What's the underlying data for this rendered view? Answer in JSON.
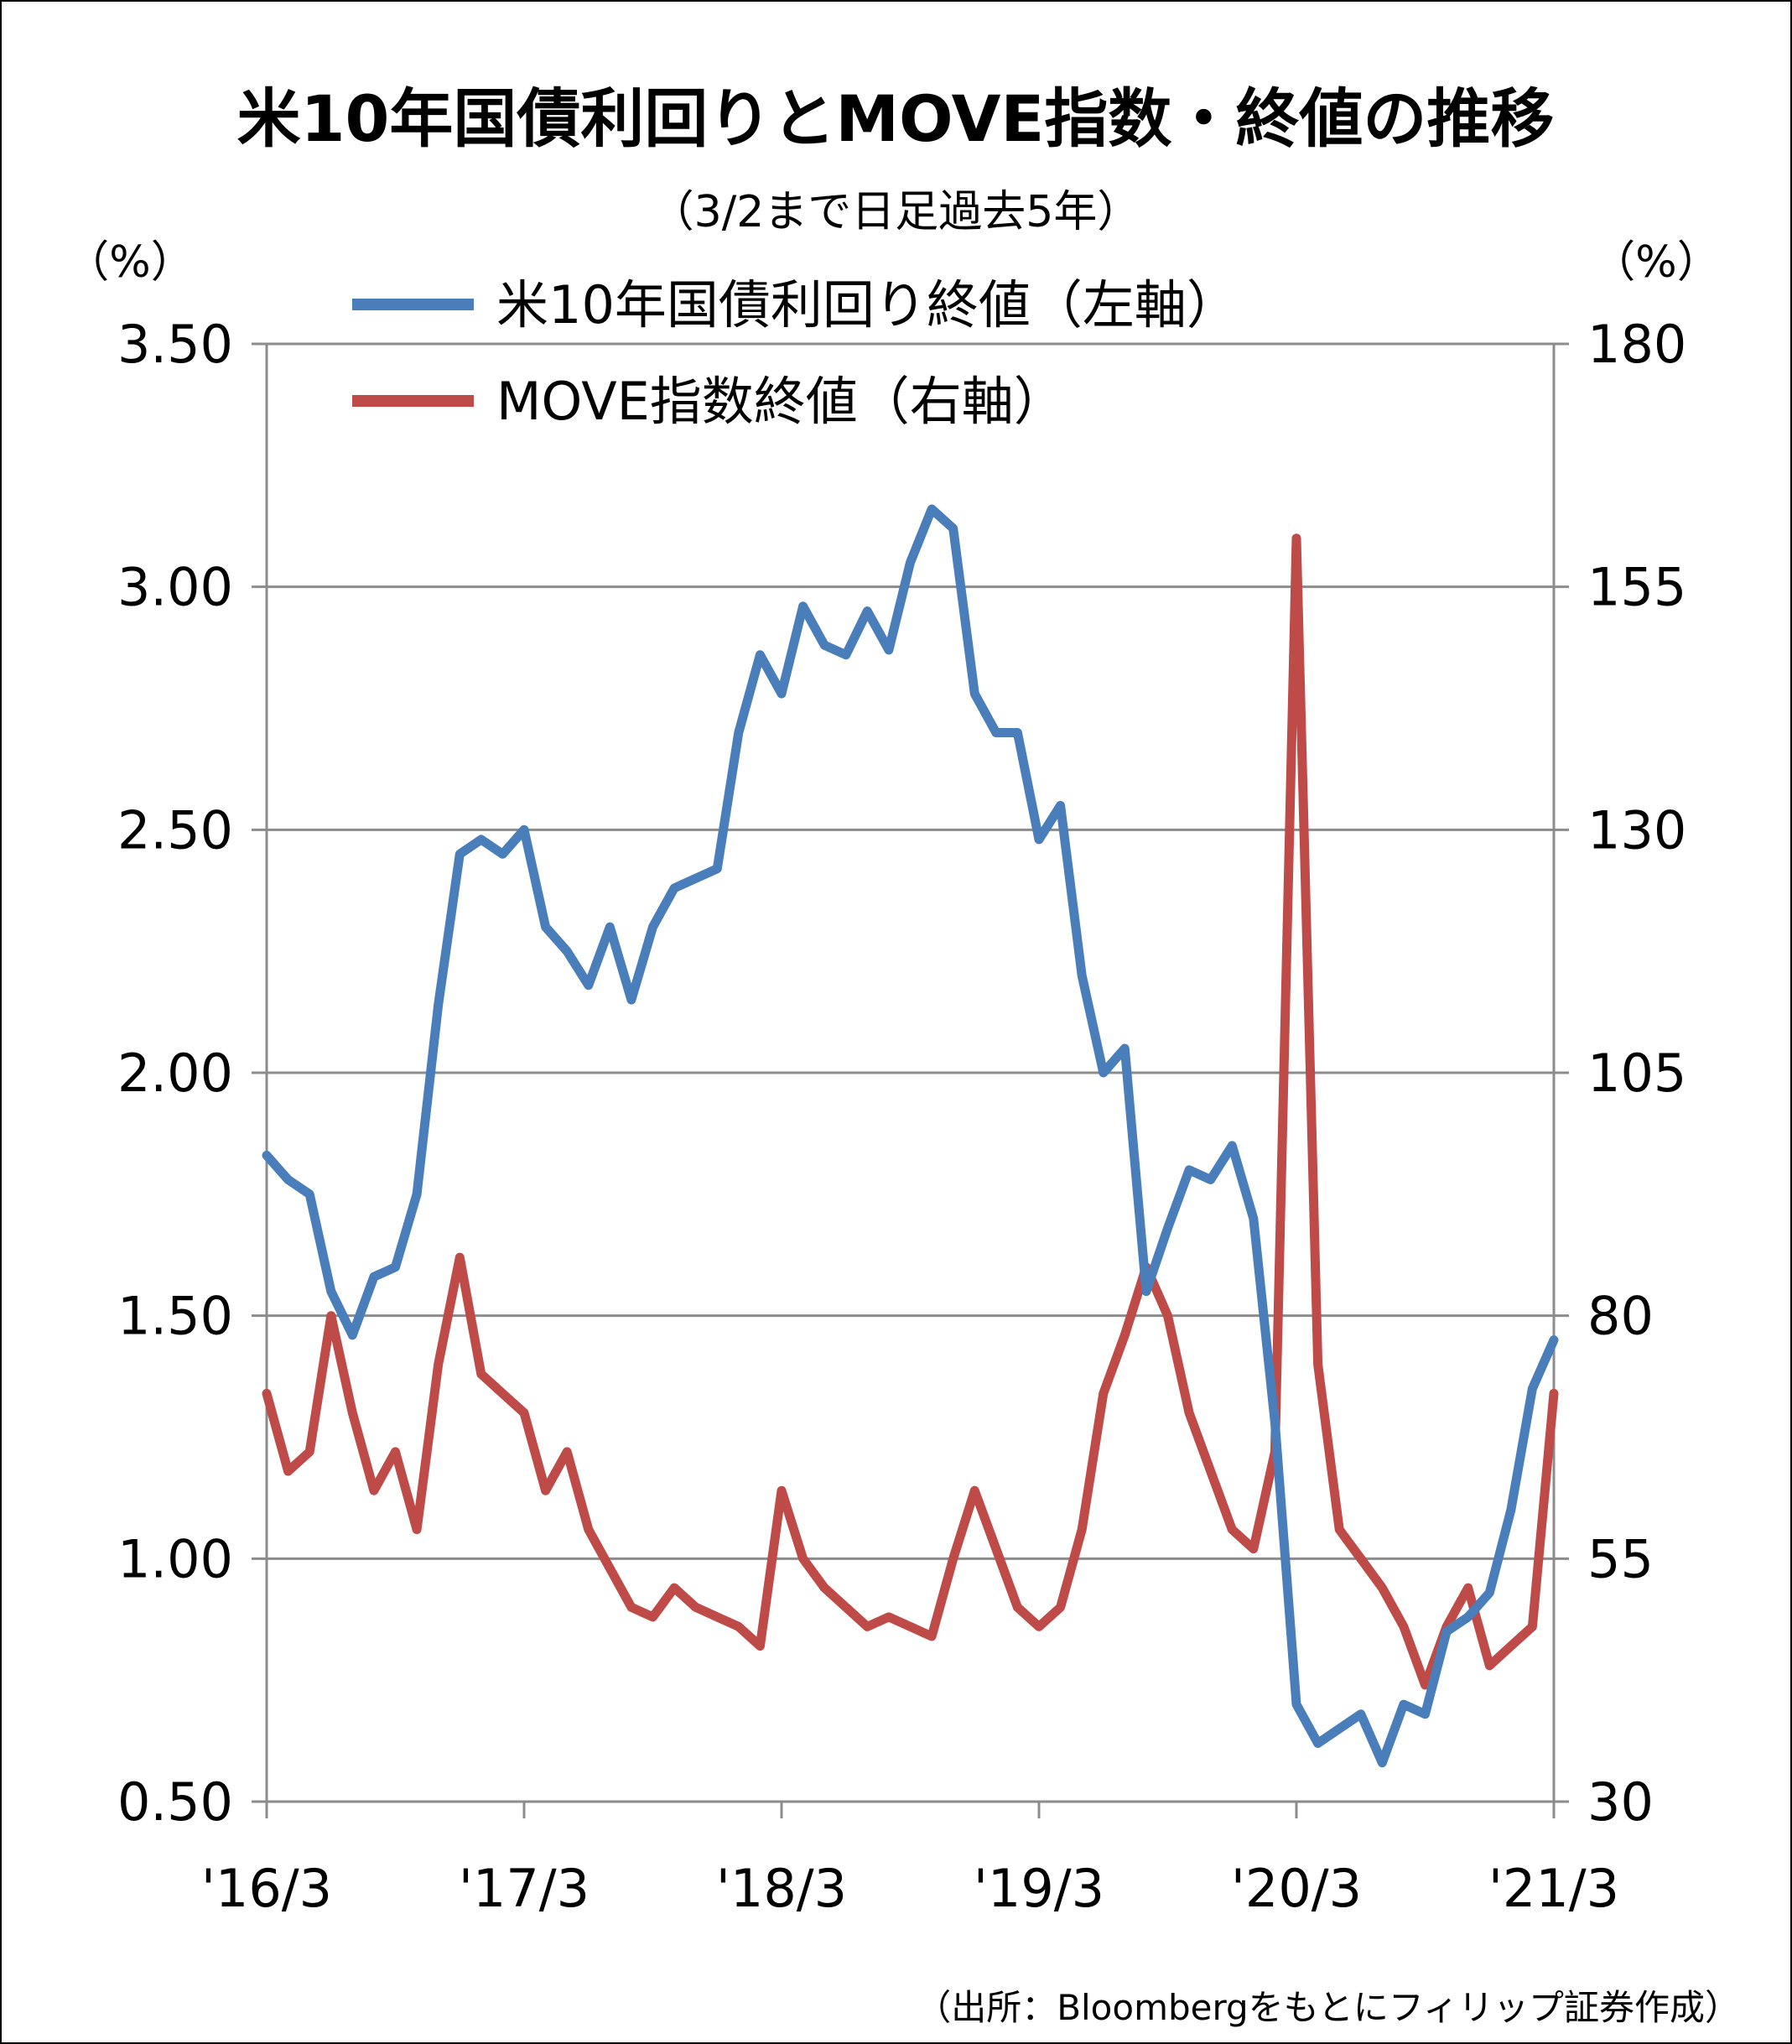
{
  "title": "米10年国債利回りとMOVE指数・終値の推移",
  "subtitle": "（3/2まで日足過去5年）",
  "source": "（出所：Bloombergをもとにフィリップ証券作成）",
  "chart_data": {
    "type": "line",
    "left_unit": "（%）",
    "right_unit": "（%）",
    "y_left": {
      "min": 0.5,
      "max": 3.5,
      "ticks": [
        "0.50",
        "1.00",
        "1.50",
        "2.00",
        "2.50",
        "3.00",
        "3.50"
      ]
    },
    "y_right": {
      "min": 30,
      "max": 180,
      "ticks": [
        "30",
        "55",
        "80",
        "105",
        "130",
        "155",
        "180"
      ]
    },
    "x_ticks": [
      "'16/3",
      "'17/3",
      "'18/3",
      "'19/3",
      "'20/3",
      "'21/3"
    ],
    "x_range": [
      "2016-03",
      "2021-03"
    ],
    "grid": "horizontal",
    "legend_placement": "top-center",
    "series": [
      {
        "name": "米10年国債利回り終値（左軸）",
        "axis": "left",
        "color": "#4a7ebb",
        "x": [
          "2016-03",
          "2016-04",
          "2016-05",
          "2016-06",
          "2016-07",
          "2016-08",
          "2016-09",
          "2016-10",
          "2016-11",
          "2016-12",
          "2017-01",
          "2017-02",
          "2017-03",
          "2017-04",
          "2017-05",
          "2017-06",
          "2017-07",
          "2017-08",
          "2017-09",
          "2017-10",
          "2017-11",
          "2017-12",
          "2018-01",
          "2018-02",
          "2018-03",
          "2018-04",
          "2018-05",
          "2018-06",
          "2018-07",
          "2018-08",
          "2018-09",
          "2018-10",
          "2018-11",
          "2018-12",
          "2019-01",
          "2019-02",
          "2019-03",
          "2019-04",
          "2019-05",
          "2019-06",
          "2019-07",
          "2019-08",
          "2019-09",
          "2019-10",
          "2019-11",
          "2019-12",
          "2020-01",
          "2020-02",
          "2020-03",
          "2020-04",
          "2020-05",
          "2020-06",
          "2020-07",
          "2020-08",
          "2020-09",
          "2020-10",
          "2020-11",
          "2020-12",
          "2021-01",
          "2021-02",
          "2021-03"
        ],
        "values": [
          1.83,
          1.78,
          1.75,
          1.55,
          1.46,
          1.58,
          1.6,
          1.75,
          2.14,
          2.45,
          2.48,
          2.45,
          2.5,
          2.3,
          2.25,
          2.18,
          2.3,
          2.15,
          2.3,
          2.38,
          2.4,
          2.42,
          2.7,
          2.86,
          2.78,
          2.96,
          2.88,
          2.86,
          2.95,
          2.87,
          3.05,
          3.16,
          3.12,
          2.78,
          2.7,
          2.7,
          2.48,
          2.55,
          2.2,
          2.0,
          2.05,
          1.55,
          1.68,
          1.8,
          1.78,
          1.85,
          1.7,
          1.28,
          0.7,
          0.62,
          0.65,
          0.68,
          0.58,
          0.7,
          0.68,
          0.85,
          0.88,
          0.93,
          1.1,
          1.35,
          1.45
        ]
      },
      {
        "name": "MOVE指数終値（右軸）",
        "axis": "right",
        "color": "#be4b48",
        "x": [
          "2016-03",
          "2016-04",
          "2016-05",
          "2016-06",
          "2016-07",
          "2016-08",
          "2016-09",
          "2016-10",
          "2016-11",
          "2016-12",
          "2017-01",
          "2017-02",
          "2017-03",
          "2017-04",
          "2017-05",
          "2017-06",
          "2017-07",
          "2017-08",
          "2017-09",
          "2017-10",
          "2017-11",
          "2017-12",
          "2018-01",
          "2018-02",
          "2018-03",
          "2018-04",
          "2018-05",
          "2018-06",
          "2018-07",
          "2018-08",
          "2018-09",
          "2018-10",
          "2018-11",
          "2018-12",
          "2019-01",
          "2019-02",
          "2019-03",
          "2019-04",
          "2019-05",
          "2019-06",
          "2019-07",
          "2019-08",
          "2019-09",
          "2019-10",
          "2019-11",
          "2019-12",
          "2020-01",
          "2020-02",
          "2020-03",
          "2020-04",
          "2020-05",
          "2020-06",
          "2020-07",
          "2020-08",
          "2020-09",
          "2020-10",
          "2020-11",
          "2020-12",
          "2021-01",
          "2021-02",
          "2021-03"
        ],
        "values": [
          72,
          64,
          66,
          80,
          70,
          62,
          66,
          58,
          75,
          86,
          74,
          72,
          70,
          62,
          66,
          58,
          54,
          50,
          49,
          52,
          50,
          49,
          48,
          46,
          62,
          55,
          52,
          50,
          48,
          49,
          48,
          47,
          55,
          62,
          56,
          50,
          48,
          50,
          58,
          72,
          78,
          85,
          80,
          70,
          64,
          58,
          56,
          66,
          160,
          75,
          58,
          55,
          52,
          48,
          42,
          48,
          52,
          44,
          46,
          48,
          72
        ]
      }
    ]
  }
}
